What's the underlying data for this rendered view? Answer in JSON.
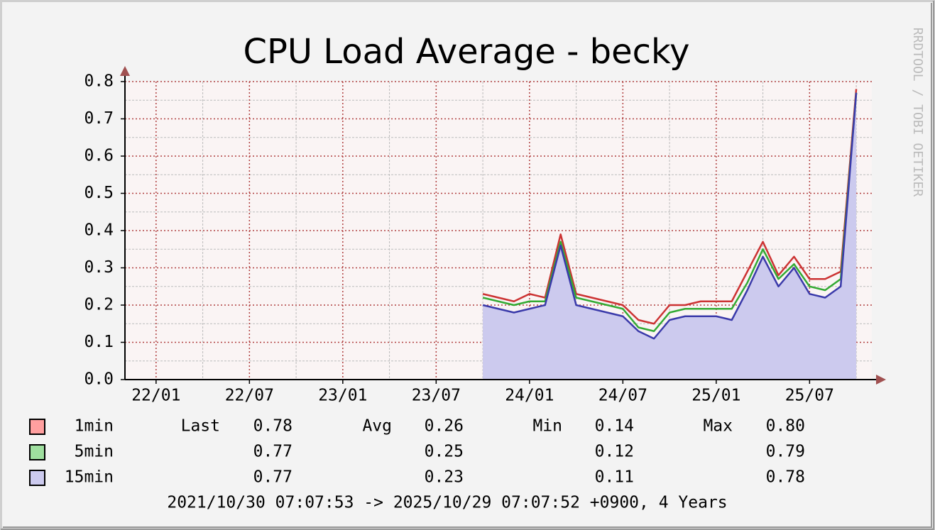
{
  "chart_data": {
    "type": "line",
    "title": "CPU Load Average - becky",
    "watermark": "RRDTOOL / TOBI OETIKER",
    "x": [
      "23/10",
      "23/11",
      "23/12",
      "24/01",
      "24/02",
      "24/03",
      "24/04",
      "24/05",
      "24/06",
      "24/07",
      "24/08",
      "24/09",
      "24/10",
      "24/11",
      "24/12",
      "25/01",
      "25/02",
      "25/03",
      "25/04",
      "25/05",
      "25/06",
      "25/07",
      "25/08",
      "25/09",
      "25/10"
    ],
    "xlim": [
      "21/11",
      "25/11"
    ],
    "xticks": [
      "22/01",
      "22/07",
      "23/01",
      "23/07",
      "24/01",
      "24/07",
      "25/01",
      "25/07"
    ],
    "minor_xticks": [
      "22/04",
      "22/10",
      "23/04",
      "23/10",
      "24/04",
      "24/10",
      "25/04",
      "25/10"
    ],
    "ylim": [
      0,
      0.8
    ],
    "yticks": [
      {
        "value": 0,
        "label": "0.0"
      },
      0.1,
      0.2,
      0.3,
      0.4,
      0.5,
      0.6,
      0.7,
      0.8
    ],
    "minor_yticks": [
      0.05,
      0.15,
      0.25,
      0.35,
      0.45,
      0.55,
      0.65,
      0.75
    ],
    "grid": true,
    "stat_labels": [
      "Last",
      "Avg",
      "Min",
      "Max"
    ],
    "series": [
      {
        "name": "1min",
        "color": "#cc3333",
        "swatch": "#ff9f9f",
        "area": false,
        "values": [
          0.23,
          0.22,
          0.21,
          0.23,
          0.22,
          0.39,
          0.23,
          0.22,
          0.21,
          0.2,
          0.16,
          0.15,
          0.2,
          0.2,
          0.21,
          0.21,
          0.21,
          0.29,
          0.37,
          0.28,
          0.33,
          0.27,
          0.27,
          0.29,
          0.78
        ],
        "stats": [
          "0.78",
          "0.26",
          "0.14",
          "0.80"
        ]
      },
      {
        "name": "5min",
        "color": "#33aa33",
        "swatch": "#9fdf9f",
        "area": false,
        "values": [
          0.22,
          0.21,
          0.2,
          0.21,
          0.21,
          0.37,
          0.22,
          0.21,
          0.2,
          0.19,
          0.14,
          0.13,
          0.18,
          0.19,
          0.19,
          0.19,
          0.19,
          0.26,
          0.35,
          0.27,
          0.31,
          0.25,
          0.24,
          0.27,
          0.77
        ],
        "stats": [
          "0.77",
          "0.25",
          "0.12",
          "0.79"
        ]
      },
      {
        "name": "15min",
        "color": "#3a3aaa",
        "swatch": "#cccaee",
        "area": true,
        "values": [
          0.2,
          0.19,
          0.18,
          0.19,
          0.2,
          0.36,
          0.2,
          0.19,
          0.18,
          0.17,
          0.13,
          0.11,
          0.16,
          0.17,
          0.17,
          0.17,
          0.16,
          0.24,
          0.33,
          0.25,
          0.3,
          0.23,
          0.22,
          0.25,
          0.77
        ],
        "stats": [
          "0.77",
          "0.23",
          "0.11",
          "0.78"
        ]
      }
    ],
    "footer": "2021/10/30 07:07:53 -> 2025/10/29 07:07:52 +0900, 4 Years"
  }
}
